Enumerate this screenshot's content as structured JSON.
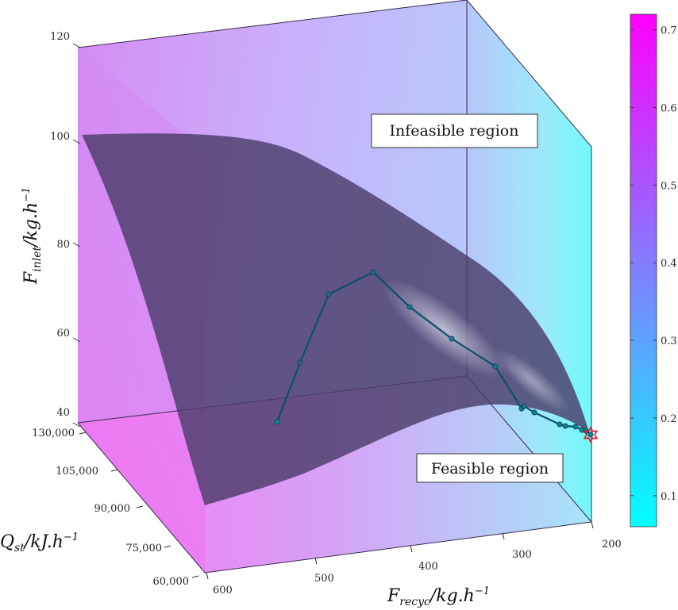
{
  "chart_data": {
    "type": "surface3d",
    "x_axis": {
      "label": "F_recyc/kg.h^-1",
      "label_parts": [
        "F",
        "recyc",
        "/kg.h",
        "−1"
      ],
      "ticks": [
        "200",
        "300",
        "400",
        "500",
        "600"
      ],
      "range": [
        200,
        600
      ]
    },
    "y_axis": {
      "label": "Q_st/kJ.h^-1",
      "label_parts": [
        "Q",
        "st",
        "/kJ.h",
        "−1"
      ],
      "ticks": [
        "60,000",
        "75,000",
        "90,000",
        "105,000",
        "130,000"
      ],
      "range": [
        60000,
        130000
      ]
    },
    "z_axis": {
      "label": "F_inlet/kg.h^-1",
      "label_parts": [
        "F",
        "inlet",
        "/kg.h",
        "−1"
      ],
      "ticks": [
        "40",
        "60",
        "80",
        "100",
        "120"
      ],
      "range": [
        40,
        120
      ]
    },
    "colorbar": {
      "ticks": [
        "0.1",
        "0.2",
        "0.3",
        "0.4",
        "0.5",
        "0.6",
        "0.7"
      ],
      "range": [
        0.06,
        0.72
      ],
      "colors": [
        "#00ffff",
        "#ff00ff"
      ]
    },
    "annotations": [
      "Infeasible region",
      "Feasible region"
    ],
    "path": {
      "color": "#0b4f6c",
      "points": [
        {
          "v": 0.07
        },
        {
          "v": 0.3
        },
        {
          "v": 0.25
        },
        {
          "v": 0.22
        },
        {
          "v": 0.18
        },
        {
          "v": 0.17
        },
        {
          "v": 0.16
        },
        {
          "v": 0.15
        },
        {
          "v": 0.14
        },
        {
          "v": 0.13
        },
        {
          "v": 0.12
        },
        {
          "v": 0.12
        },
        {
          "v": 0.11
        },
        {
          "v": 0.1
        },
        {
          "v": 0.09
        },
        {
          "v": 0.08
        }
      ],
      "optimum_marker": "red-hexagram"
    }
  }
}
